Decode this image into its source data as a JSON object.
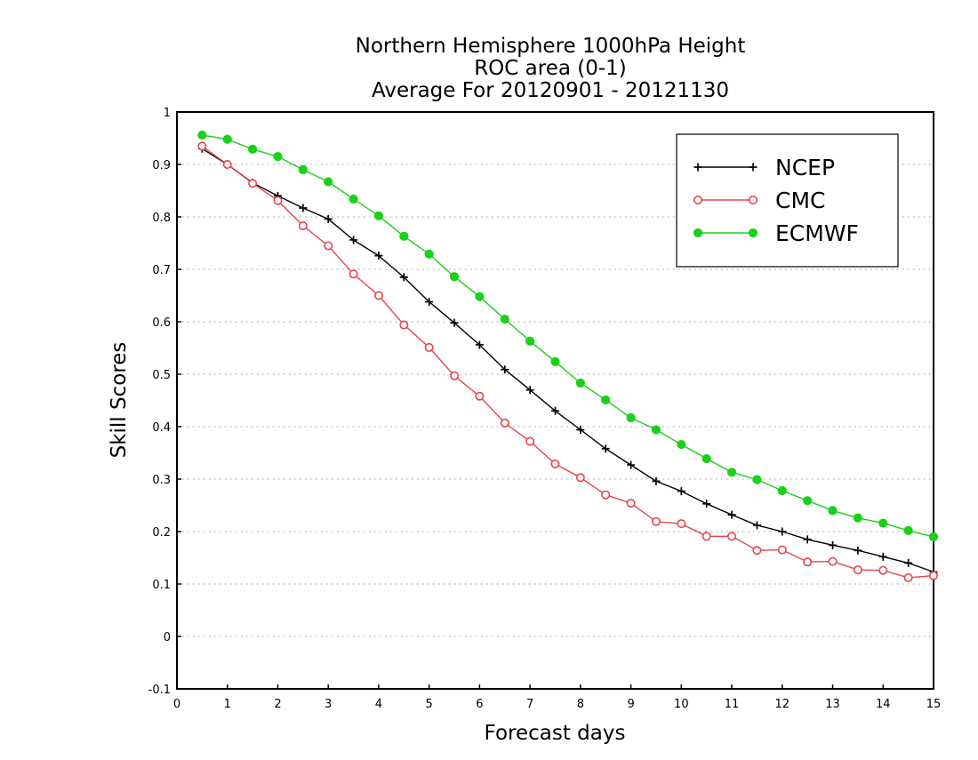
{
  "chart_data": {
    "type": "line",
    "title_lines": [
      "Northern Hemisphere 1000hPa Height",
      "ROC area (0-1)",
      "Average For 20120901 - 20121130"
    ],
    "xlabel": "Forecast days",
    "ylabel": "Skill Scores",
    "xlim": [
      0,
      15
    ],
    "ylim": [
      -0.1,
      1
    ],
    "x_ticks": [
      "0",
      "1",
      "2",
      "3",
      "4",
      "5",
      "6",
      "7",
      "8",
      "9",
      "10",
      "11",
      "12",
      "13",
      "14",
      "15"
    ],
    "y_ticks": [
      "-0.1",
      "0",
      "0.1",
      "0.2",
      "0.3",
      "0.4",
      "0.5",
      "0.6",
      "0.7",
      "0.8",
      "0.9",
      "1"
    ],
    "grid": "horizontal dotted",
    "legend_position": "top-right",
    "x": [
      0.5,
      1,
      1.5,
      2,
      2.5,
      3,
      3.5,
      4,
      4.5,
      5,
      5.5,
      6,
      6.5,
      7,
      7.5,
      8,
      8.5,
      9,
      9.5,
      10,
      10.5,
      11,
      11.5,
      12,
      12.5,
      13,
      13.5,
      14,
      14.5,
      15
    ],
    "series": [
      {
        "name": "NCEP",
        "color": "#000000",
        "marker": "plus",
        "values": [
          0.93,
          0.9,
          0.865,
          0.84,
          0.817,
          0.796,
          0.756,
          0.726,
          0.685,
          0.638,
          0.598,
          0.556,
          0.509,
          0.47,
          0.43,
          0.394,
          0.358,
          0.327,
          0.296,
          0.277,
          0.253,
          0.232,
          0.212,
          0.2,
          0.185,
          0.174,
          0.164,
          0.152,
          0.14,
          0.123
        ]
      },
      {
        "name": "CMC",
        "color": "#e8434c",
        "marker": "open-circle",
        "values": [
          0.935,
          0.9,
          0.864,
          0.831,
          0.783,
          0.745,
          0.691,
          0.65,
          0.594,
          0.551,
          0.497,
          0.458,
          0.407,
          0.372,
          0.329,
          0.303,
          0.27,
          0.254,
          0.219,
          0.215,
          0.191,
          0.191,
          0.164,
          0.165,
          0.142,
          0.143,
          0.127,
          0.126,
          0.112,
          0.116
        ]
      },
      {
        "name": "ECMWF",
        "color": "#19d119",
        "marker": "filled-circle",
        "values": [
          0.956,
          0.948,
          0.929,
          0.915,
          0.89,
          0.867,
          0.834,
          0.802,
          0.763,
          0.729,
          0.686,
          0.648,
          0.605,
          0.563,
          0.524,
          0.483,
          0.451,
          0.417,
          0.394,
          0.366,
          0.339,
          0.313,
          0.299,
          0.278,
          0.259,
          0.24,
          0.226,
          0.216,
          0.202,
          0.19
        ]
      }
    ]
  }
}
